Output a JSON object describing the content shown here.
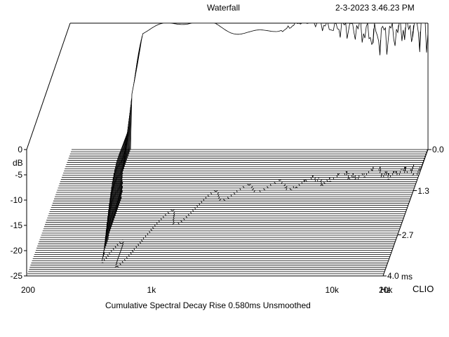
{
  "window": {
    "title": "Waterfall",
    "timestamp": "2-3-2023 3.46.23 PM",
    "brand": "CLIO"
  },
  "chart_data": {
    "type": "waterfall",
    "title": "Waterfall",
    "caption": "Cumulative Spectral Decay   Rise 0.580ms   Unsmoothed",
    "ylabel": "dB",
    "xlabel_unit": "Hz",
    "time_unit": "ms",
    "x_scale": "log",
    "xlim": [
      200,
      20000
    ],
    "ylim": [
      -25,
      0
    ],
    "time_range": [
      0,
      4.0
    ],
    "y_ticks": [
      "0",
      "-5",
      "-10",
      "-15",
      "-20",
      "-25"
    ],
    "y_tick_values": [
      0,
      -5,
      -10,
      -15,
      -20,
      -25
    ],
    "x_ticks": [
      {
        "value": 200,
        "label": "200"
      },
      {
        "value": 1000,
        "label": "1k"
      },
      {
        "value": 10000,
        "label": "10k"
      },
      {
        "value": 20000,
        "label": "20k"
      }
    ],
    "time_ticks": [
      {
        "value": 0.0,
        "label": "0.0"
      },
      {
        "value": 1.3,
        "label": "1.3"
      },
      {
        "value": 2.7,
        "label": "2.7"
      },
      {
        "value": 4.0,
        "label": "4.0"
      }
    ],
    "slice_count": 60,
    "grid": false,
    "legend": "none"
  }
}
